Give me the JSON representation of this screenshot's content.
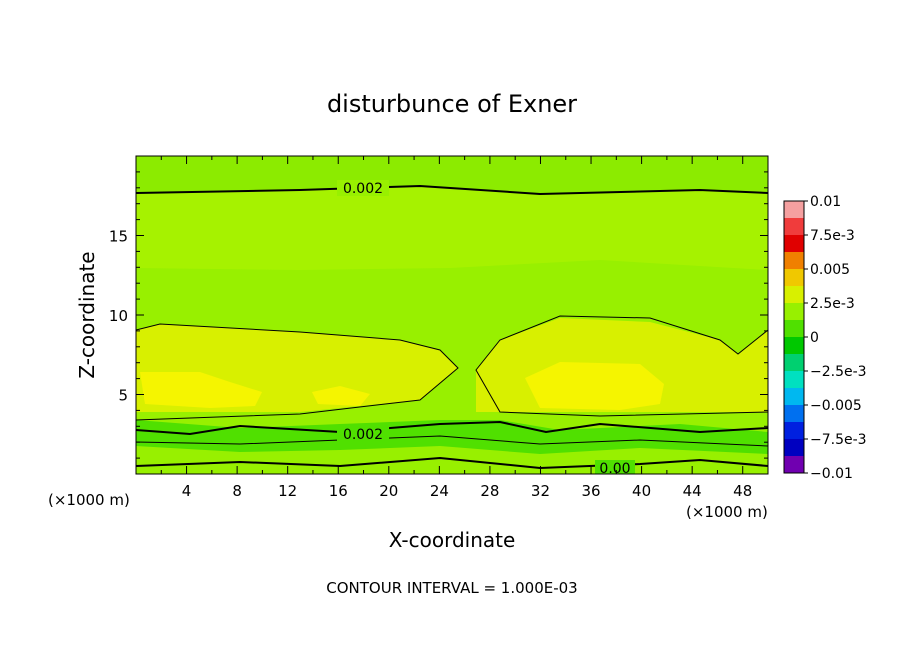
{
  "chart_data": {
    "type": "heatmap",
    "title": "disturbunce of Exner",
    "xlabel": "X-coordinate",
    "ylabel": "Z-coordinate",
    "x_unit": "(×1000 m)",
    "z_unit": "(×1000 m)",
    "xlim": [
      0,
      50
    ],
    "ylim": [
      0,
      20
    ],
    "x_ticks": [
      "4",
      "8",
      "12",
      "16",
      "20",
      "24",
      "28",
      "32",
      "36",
      "40",
      "44",
      "48"
    ],
    "y_ticks": [
      "5",
      "10",
      "15"
    ],
    "contour_interval": "CONTOUR INTERVAL = 1.000E-03",
    "contour_labels": [
      "0.002",
      "0.002",
      "0.00"
    ],
    "colorbar": {
      "min": -0.01,
      "max": 0.01,
      "tick_labels": [
        "0.01",
        "7.5e-3",
        "0.005",
        "2.5e-3",
        "0",
        "−2.5e-3",
        "−0.005",
        "−7.5e-3",
        "−0.01"
      ],
      "colors": [
        "#f5a0a0",
        "#f03c3c",
        "#e00000",
        "#f08000",
        "#f0c800",
        "#d8f000",
        "#98f000",
        "#50e000",
        "#00c800",
        "#00d070",
        "#00e0c0",
        "#00b8f0",
        "#0070f0",
        "#0020e0",
        "#0000c0",
        "#7000b0"
      ]
    },
    "fields": {
      "band_bottom": "#98f000",
      "band_lower": "#50e000",
      "band_mid": "#98f000",
      "band_upper": "#a6f200",
      "band_top": "#8ceb00",
      "core": "#d8f000",
      "max_core": "#f5f500"
    }
  }
}
